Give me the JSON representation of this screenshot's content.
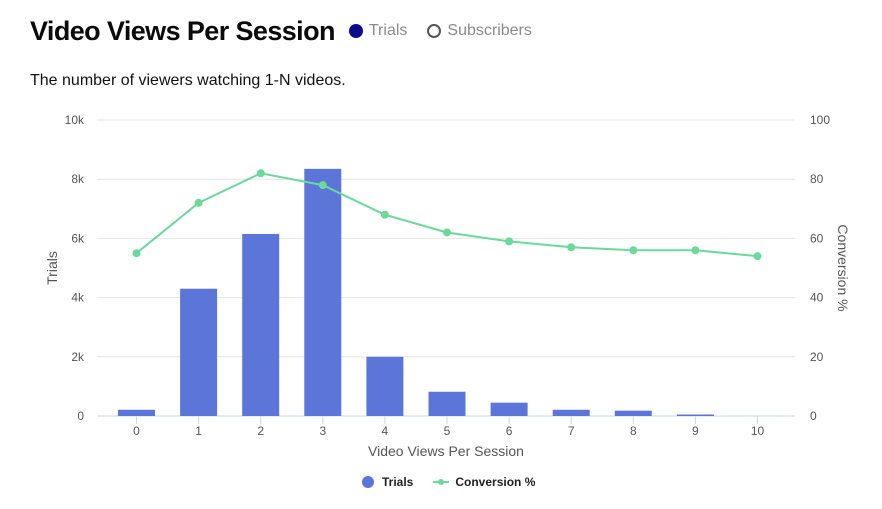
{
  "header": {
    "title": "Video Views Per Session",
    "toggles": [
      {
        "label": "Trials",
        "state": "selected",
        "icon": "filled-circle-icon"
      },
      {
        "label": "Subscribers",
        "state": "unselected",
        "icon": "empty-circle-icon"
      }
    ]
  },
  "subtitle": "The number of viewers watching 1-N videos.",
  "colors": {
    "bars": "#5b76d8",
    "line": "#6ad99a",
    "toggle_selected": "#0a0a8a",
    "grid": "#e6e6e6"
  },
  "chart_data": {
    "type": "bar+line",
    "title": "Video Views Per Session",
    "subtitle": "The number of viewers watching 1-N videos.",
    "xlabel": "Video Views Per Session",
    "ylabel": "Trials",
    "y2label": "Conversion %",
    "categories": [
      "0",
      "1",
      "2",
      "3",
      "4",
      "5",
      "6",
      "7",
      "8",
      "9",
      "10"
    ],
    "series": [
      {
        "name": "Trials",
        "type": "bar",
        "axis": "left",
        "values": [
          210,
          4300,
          6150,
          8350,
          2000,
          820,
          450,
          210,
          180,
          50,
          0
        ]
      },
      {
        "name": "Conversion %",
        "type": "line",
        "axis": "right",
        "values": [
          55,
          72,
          82,
          78,
          68,
          62,
          59,
          57,
          56,
          56,
          54
        ]
      }
    ],
    "ylim": [
      0,
      10000
    ],
    "y2lim": [
      0,
      100
    ],
    "yticks": [
      "0",
      "2k",
      "4k",
      "6k",
      "8k",
      "10k"
    ],
    "y2ticks": [
      "0",
      "20",
      "40",
      "60",
      "80",
      "100"
    ],
    "grid": true,
    "legend_position": "bottom"
  },
  "legend": {
    "items": [
      {
        "label": "Trials"
      },
      {
        "label": "Conversion %"
      }
    ]
  }
}
